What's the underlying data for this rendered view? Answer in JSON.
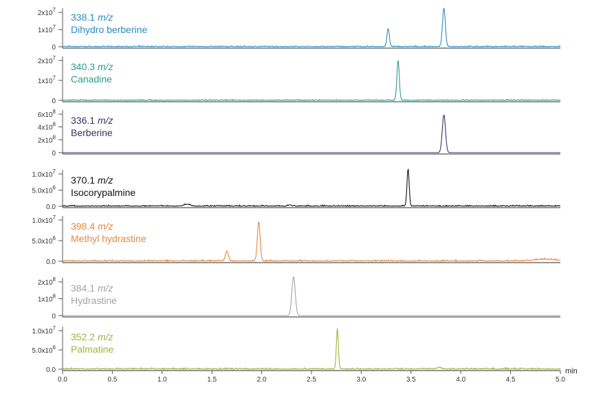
{
  "chart_data": {
    "type": "line",
    "xlabel": "min",
    "xlim": [
      0.0,
      5.0
    ],
    "xticks": [
      "0.0",
      "0.5",
      "1.0",
      "1.5",
      "2.0",
      "2.5",
      "3.0",
      "3.5",
      "4.0",
      "4.5",
      "5.0"
    ],
    "grid": false,
    "panels": [
      {
        "mz": "338.1",
        "mz_unit": "m/z",
        "name": "Dihydro berberine",
        "color": "#2b8cc0",
        "ticks": [
          {
            "value": 0,
            "label": "0",
            "exp": ""
          },
          {
            "value": 10000000.0,
            "label": "1x10",
            "exp": "7"
          },
          {
            "value": 20000000.0,
            "label": "2x10",
            "exp": "7"
          }
        ],
        "peaks": [
          {
            "rt": 3.27,
            "height": 10500000.0,
            "width": 0.012
          },
          {
            "rt": 3.83,
            "height": 22500000.0,
            "width": 0.014
          }
        ],
        "noise": 400000.0
      },
      {
        "mz": "340.3",
        "mz_unit": "m/z",
        "name": "Canadine",
        "color": "#2a9b8c",
        "ticks": [
          {
            "value": 0,
            "label": "0",
            "exp": ""
          },
          {
            "value": 10000000.0,
            "label": "1x10",
            "exp": "7"
          },
          {
            "value": 20000000.0,
            "label": "2x10",
            "exp": "7"
          }
        ],
        "peaks": [
          {
            "rt": 3.37,
            "height": 20000000.0,
            "width": 0.012
          }
        ],
        "noise": 300000.0
      },
      {
        "mz": "336.1",
        "mz_unit": "m/z",
        "name": "Berberine",
        "color": "#3b2f63",
        "ticks": [
          {
            "value": 0,
            "label": "0",
            "exp": ""
          },
          {
            "value": 200000000.0,
            "label": "2x10",
            "exp": "8"
          },
          {
            "value": 400000000.0,
            "label": "4x10",
            "exp": "8"
          },
          {
            "value": 600000000.0,
            "label": "6x10",
            "exp": "8"
          }
        ],
        "peaks": [
          {
            "rt": 3.83,
            "height": 590000000.0,
            "width": 0.016
          }
        ],
        "noise": 0
      },
      {
        "mz": "370.1",
        "mz_unit": "m/z",
        "name": "Isocorypalmine",
        "color": "#111111",
        "ticks": [
          {
            "value": 0,
            "label": "0.0",
            "exp": ""
          },
          {
            "value": 5000000.0,
            "label": "5.0x10",
            "exp": "6"
          },
          {
            "value": 10000000.0,
            "label": "1.0x10",
            "exp": "7"
          }
        ],
        "peaks": [
          {
            "rt": 1.25,
            "height": 600000.0,
            "width": 0.03
          },
          {
            "rt": 2.28,
            "height": 400000.0,
            "width": 0.01
          },
          {
            "rt": 3.47,
            "height": 11500000.0,
            "width": 0.011
          }
        ],
        "noise": 250000.0
      },
      {
        "mz": "398.4",
        "mz_unit": "m/z",
        "name": "Methyl hydrastine",
        "color": "#e8873a",
        "ticks": [
          {
            "value": 0,
            "label": "0.0",
            "exp": ""
          },
          {
            "value": 5000000.0,
            "label": "5.0x10",
            "exp": "6"
          },
          {
            "value": 10000000.0,
            "label": "1.0x10",
            "exp": "7"
          }
        ],
        "peaks": [
          {
            "rt": 1.65,
            "height": 2300000.0,
            "width": 0.015
          },
          {
            "rt": 1.97,
            "height": 9500000.0,
            "width": 0.014
          },
          {
            "rt": 4.85,
            "height": 400000.0,
            "width": 0.12
          }
        ],
        "noise": 250000.0
      },
      {
        "mz": "384.1",
        "mz_unit": "m/z",
        "name": "Hydrastine",
        "color": "#a3a3a3",
        "ticks": [
          {
            "value": 0,
            "label": "0",
            "exp": ""
          },
          {
            "value": 100000000.0,
            "label": "1x10",
            "exp": "8"
          },
          {
            "value": 200000000.0,
            "label": "2x10",
            "exp": "8"
          }
        ],
        "peaks": [
          {
            "rt": 2.32,
            "height": 230000000.0,
            "width": 0.017
          }
        ],
        "noise": 0
      },
      {
        "mz": "352.2",
        "mz_unit": "m/z",
        "name": "Palmatine",
        "color": "#9bb53a",
        "ticks": [
          {
            "value": 0,
            "label": "0.0",
            "exp": ""
          },
          {
            "value": 5000000.0,
            "label": "5.0x10",
            "exp": "6"
          },
          {
            "value": 10000000.0,
            "label": "1.0x10",
            "exp": "7"
          }
        ],
        "peaks": [
          {
            "rt": 2.76,
            "height": 10500000.0,
            "width": 0.01
          },
          {
            "rt": 3.78,
            "height": 400000.0,
            "width": 0.02
          }
        ],
        "noise": 250000.0
      }
    ]
  }
}
